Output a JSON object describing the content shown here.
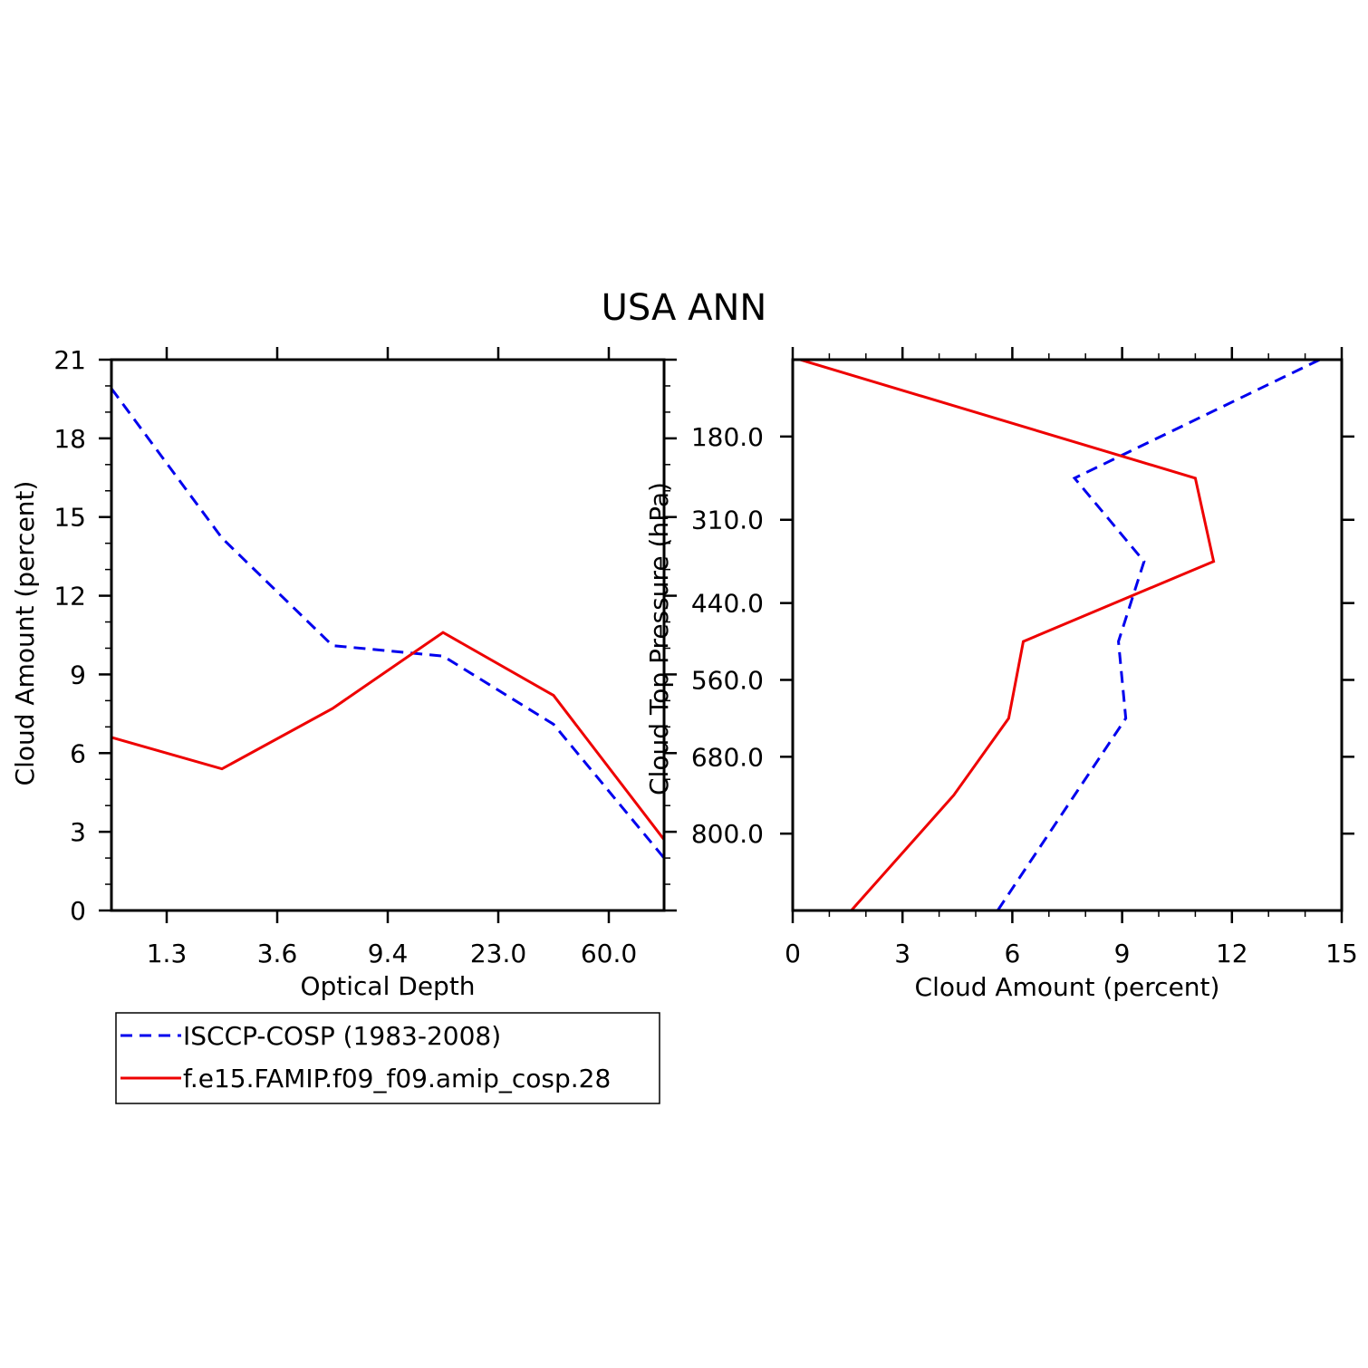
{
  "title": "USA ANN",
  "colors": {
    "obs": "#0000ee",
    "model": "#ee0000",
    "axis": "#000000"
  },
  "legend": {
    "entries": [
      {
        "label": "ISCCP-COSP (1983-2008)",
        "style": "dashed",
        "color": "#0000ee"
      },
      {
        "label": "f.e15.FAMIP.f09_f09.amip_cosp.28",
        "style": "solid",
        "color": "#ee0000"
      }
    ]
  },
  "chart_data": [
    {
      "type": "line",
      "title": "USA ANN",
      "xlabel": "Optical Depth",
      "ylabel": "Cloud Amount (percent)",
      "x_index": [
        0,
        1,
        2,
        3,
        4,
        5
      ],
      "x_tick_positions": [
        0.5,
        1.5,
        2.5,
        3.5,
        4.5
      ],
      "x_tick_labels": [
        "1.3",
        "3.6",
        "9.4",
        "23.0",
        "60.0"
      ],
      "xlim": [
        0,
        5
      ],
      "ylim": [
        0,
        21
      ],
      "y_ticks": [
        0,
        3,
        6,
        9,
        12,
        15,
        18,
        21
      ],
      "series": [
        {
          "name": "ISCCP-COSP (1983-2008)",
          "style": "dashed",
          "color": "#0000ee",
          "values": [
            19.9,
            14.2,
            10.1,
            9.7,
            7.1,
            2.0
          ]
        },
        {
          "name": "f.e15.FAMIP.f09_f09.amip_cosp.28",
          "style": "solid",
          "color": "#ee0000",
          "values": [
            6.6,
            5.4,
            7.7,
            10.6,
            8.2,
            2.7
          ]
        }
      ]
    },
    {
      "type": "line",
      "xlabel": "Cloud Amount (percent)",
      "ylabel": "Cloud Top Pressure (hPa)",
      "xlim": [
        0,
        15
      ],
      "x_ticks": [
        0,
        3,
        6,
        9,
        12,
        15
      ],
      "ylim": [
        60,
        920
      ],
      "y_ticks": [
        180,
        310,
        440,
        560,
        680,
        800
      ],
      "y_tick_labels": [
        "180.0",
        "310.0",
        "440.0",
        "560.0",
        "680.0",
        "800.0"
      ],
      "pressure": [
        60,
        245,
        375,
        500,
        620,
        740,
        920
      ],
      "series": [
        {
          "name": "ISCCP-COSP (1983-2008)",
          "style": "dashed",
          "color": "#0000ee",
          "values": [
            14.4,
            7.7,
            9.6,
            8.9,
            9.1,
            7.7,
            5.6
          ]
        },
        {
          "name": "f.e15.FAMIP.f09_f09.amip_cosp.28",
          "style": "solid",
          "color": "#ee0000",
          "values": [
            0.2,
            11.0,
            11.5,
            6.3,
            5.9,
            4.4,
            1.6
          ]
        }
      ]
    }
  ]
}
